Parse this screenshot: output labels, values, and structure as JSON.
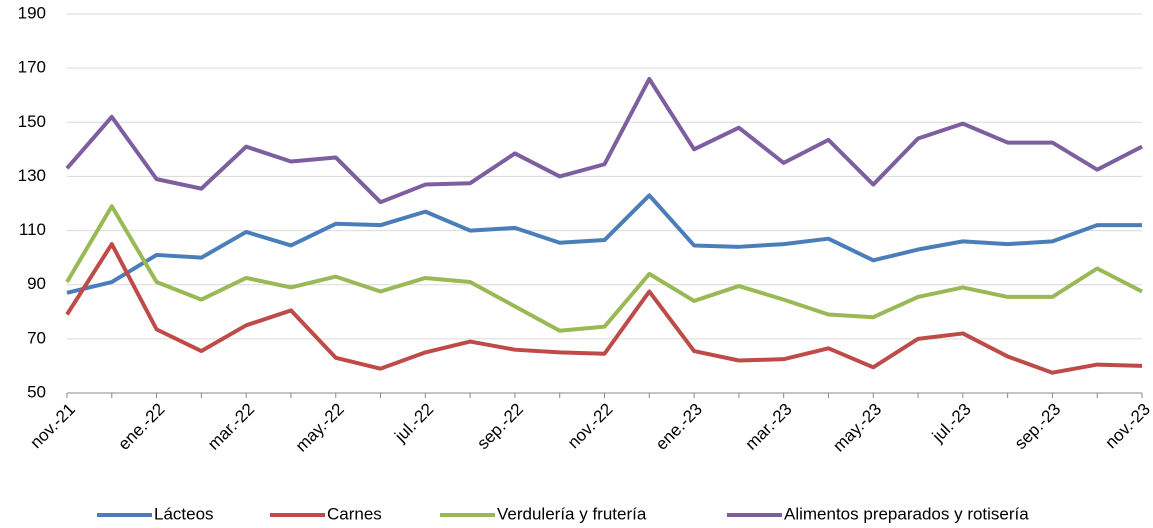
{
  "chart_data": {
    "type": "line",
    "categories": [
      "nov.-21",
      null,
      "ene.-22",
      null,
      "mar.-22",
      null,
      "may.-22",
      null,
      "jul.-22",
      null,
      "sep.-22",
      null,
      "nov.-22",
      null,
      "ene.-23",
      null,
      "mar.-23",
      null,
      "may.-23",
      null,
      "jul.-23",
      null,
      "sep.-23",
      null,
      "nov.-23"
    ],
    "series": [
      {
        "name": "Lácteos",
        "color": "#4a7ebb",
        "values": [
          87,
          91,
          101,
          100,
          109.5,
          104.5,
          112.5,
          112,
          117,
          110,
          111,
          105.5,
          106.5,
          123,
          104.5,
          104,
          105,
          107,
          99,
          103,
          106,
          105,
          106,
          112,
          112
        ]
      },
      {
        "name": "Carnes",
        "color": "#be4b48",
        "values": [
          79,
          105,
          73.5,
          65.5,
          75,
          80.5,
          63,
          59,
          65,
          69,
          66,
          65,
          64.5,
          87.5,
          65.5,
          62,
          62.5,
          66.5,
          59.5,
          70,
          72,
          63.5,
          57.5,
          60.5,
          60
        ]
      },
      {
        "name": "Verdulería y frutería",
        "color": "#98b954",
        "values": [
          91,
          119,
          91,
          84.5,
          92.5,
          89,
          93,
          87.5,
          92.5,
          91,
          82,
          73,
          74.5,
          94,
          84,
          89.5,
          84.5,
          79,
          78,
          85.5,
          89,
          85.5,
          85.5,
          96,
          87.5
        ]
      },
      {
        "name": "Alimentos preparados y rotisería",
        "color": "#7d5fa0",
        "values": [
          133,
          152,
          129,
          125.5,
          141,
          135.5,
          137,
          120.5,
          127,
          127.5,
          138.5,
          130,
          134.5,
          166,
          140,
          148,
          135,
          143.5,
          127,
          144,
          149.5,
          142.5,
          142.5,
          132.5,
          141
        ]
      }
    ],
    "ylim": [
      50,
      190
    ],
    "yticks": [
      50,
      70,
      90,
      110,
      130,
      150,
      170,
      190
    ],
    "grid": true,
    "legend": "bottom"
  }
}
